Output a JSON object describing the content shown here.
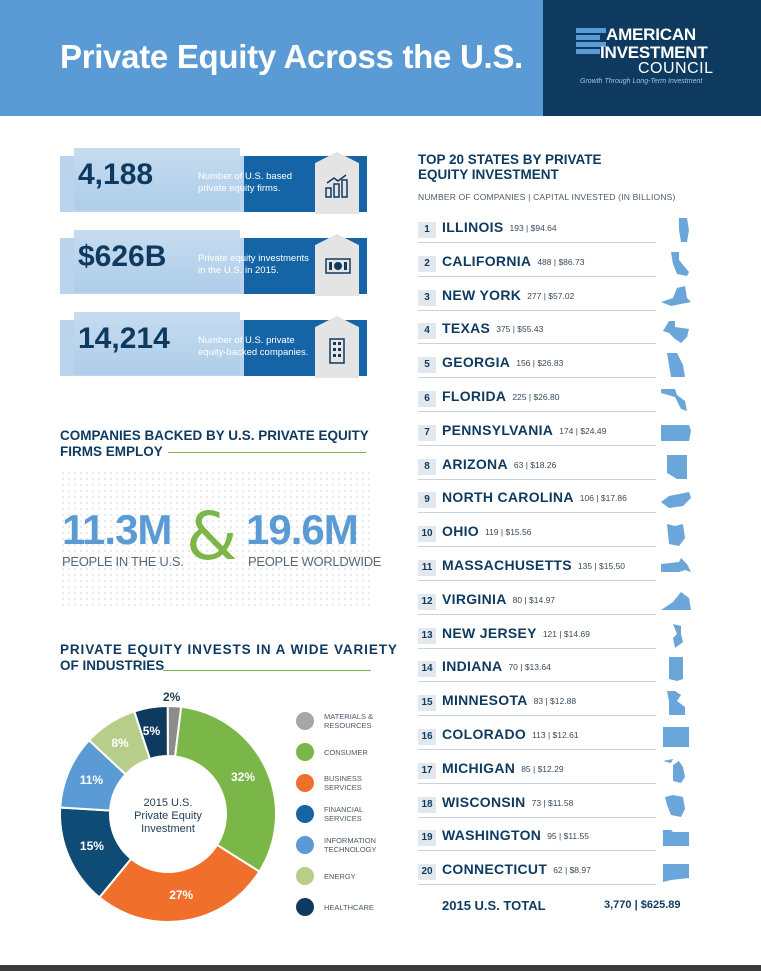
{
  "header": {
    "title": "Private Equity Across the U.S.",
    "logo_line1": "AMERICAN",
    "logo_line2": "INVESTMENT",
    "logo_line3": "COUNCIL",
    "logo_tagline": "Growth Through Long-Term Investment"
  },
  "stats": [
    {
      "value": "4,188",
      "desc": "Number of U.S. based private equity firms.",
      "icon": "bar-chart-icon"
    },
    {
      "value": "$626B",
      "desc": "Private equity investments in the U.S. in 2015.",
      "icon": "money-icon"
    },
    {
      "value": "14,214",
      "desc": "Number of U.S. private equity-backed companies.",
      "icon": "building-icon"
    }
  ],
  "employ": {
    "title_l1": "COMPANIES BACKED BY U.S. PRIVATE EQUITY",
    "title_l2": "FIRMS EMPLOY",
    "us_value": "11.3M",
    "us_label": "PEOPLE IN THE U.S.",
    "amp": "&",
    "world_value": "19.6M",
    "world_label": "PEOPLE WORLDWIDE"
  },
  "industries": {
    "title_l1": "PRIVATE EQUITY INVESTS IN A WIDE VARIETY",
    "title_l2": "OF INDUSTRIES",
    "center_l1": "2015 U.S.",
    "center_l2": "Private Equity",
    "center_l3": "Investment"
  },
  "chart_data": {
    "type": "pie",
    "categories": [
      "Materials & Resources",
      "Consumer",
      "Business Services",
      "Financial Services",
      "Information Technology",
      "Energy",
      "Healthcare"
    ],
    "values": [
      2,
      32,
      27,
      15,
      11,
      8,
      5
    ],
    "labels": [
      "2%",
      "32%",
      "27%",
      "15%",
      "11%",
      "8%",
      "5%"
    ],
    "colors": [
      "#8c8c8c",
      "#7ab648",
      "#f0702b",
      "#0f4c75",
      "#5b9bd5",
      "#b6ce8a",
      "#0f3a5f"
    ],
    "legend": [
      {
        "l1": "MATERIALS &",
        "l2": "RESOURCES",
        "color": "#a6a6a6",
        "icon": "materials-icon"
      },
      {
        "l1": "CONSUMER",
        "l2": "",
        "color": "#7ab648",
        "icon": "cart-icon"
      },
      {
        "l1": "BUSINESS",
        "l2": "SERVICES",
        "color": "#f0702b",
        "icon": "briefcase-icon"
      },
      {
        "l1": "FINANCIAL",
        "l2": "SERVICES",
        "color": "#1565a6",
        "icon": "finance-icon"
      },
      {
        "l1": "INFORMATION",
        "l2": "TECHNOLOGY",
        "color": "#5b9bd5",
        "icon": "laptop-icon"
      },
      {
        "l1": "ENERGY",
        "l2": "",
        "color": "#b6ce8a",
        "icon": "sun-icon"
      },
      {
        "l1": "HEALTHCARE",
        "l2": "",
        "color": "#0f3a5f",
        "icon": "medical-icon"
      }
    ]
  },
  "states": {
    "title_l1": "TOP 20 STATES BY PRIVATE",
    "title_l2": "EQUITY INVESTMENT",
    "subtitle": "NUMBER OF COMPANIES | CAPITAL INVESTED (IN BILLIONS)",
    "rows": [
      {
        "rank": "1",
        "name": "ILLINOIS",
        "vals": "193 | $94.64"
      },
      {
        "rank": "2",
        "name": "CALIFORNIA",
        "vals": "488 | $86.73"
      },
      {
        "rank": "3",
        "name": "NEW YORK",
        "vals": "277 | $57.02"
      },
      {
        "rank": "4",
        "name": "TEXAS",
        "vals": "375 | $55.43"
      },
      {
        "rank": "5",
        "name": "GEORGIA",
        "vals": "156 | $26.83"
      },
      {
        "rank": "6",
        "name": "FLORIDA",
        "vals": "225 | $26.80"
      },
      {
        "rank": "7",
        "name": "PENNSYLVANIA",
        "vals": "174 | $24.49"
      },
      {
        "rank": "8",
        "name": "ARIZONA",
        "vals": "63 | $18.26"
      },
      {
        "rank": "9",
        "name": "NORTH CAROLINA",
        "vals": "106 | $17.86"
      },
      {
        "rank": "10",
        "name": "OHIO",
        "vals": "119 | $15.56"
      },
      {
        "rank": "11",
        "name": "MASSACHUSETTS",
        "vals": "135 | $15.50"
      },
      {
        "rank": "12",
        "name": "VIRGINIA",
        "vals": "80 | $14.97"
      },
      {
        "rank": "13",
        "name": "NEW JERSEY",
        "vals": "121 | $14.69"
      },
      {
        "rank": "14",
        "name": "INDIANA",
        "vals": "70 | $13.64"
      },
      {
        "rank": "15",
        "name": "MINNESOTA",
        "vals": "83 | $12.88"
      },
      {
        "rank": "16",
        "name": "COLORADO",
        "vals": "113 | $12.61"
      },
      {
        "rank": "17",
        "name": "MICHIGAN",
        "vals": "85 | $12.29"
      },
      {
        "rank": "18",
        "name": "WISCONSIN",
        "vals": "73 | $11.58"
      },
      {
        "rank": "19",
        "name": "WASHINGTON",
        "vals": "95 | $11.55"
      },
      {
        "rank": "20",
        "name": "CONNECTICUT",
        "vals": "62 | $8.97"
      }
    ],
    "total_label": "2015 U.S. TOTAL",
    "total_vals": "3,770 | $625.89"
  }
}
